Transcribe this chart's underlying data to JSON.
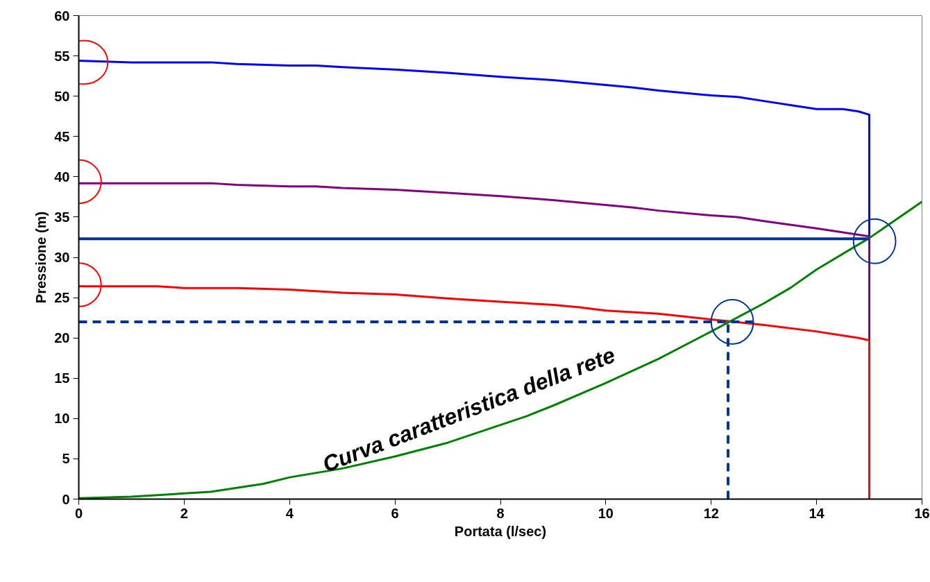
{
  "chart_data": {
    "type": "line",
    "xlabel": "Portata (l/sec)",
    "ylabel": "Pressione (m)",
    "xlim": [
      0,
      16
    ],
    "xticks": [
      0,
      2,
      4,
      6,
      8,
      10,
      12,
      14,
      16
    ],
    "ylim": [
      0,
      60
    ],
    "yticks": [
      0,
      5,
      10,
      15,
      20,
      25,
      30,
      35,
      40,
      45,
      50,
      55,
      60
    ],
    "grid": false,
    "marker": "none",
    "series": [
      {
        "color": "#0000ff",
        "x": [
          0,
          1,
          2.5,
          3,
          4,
          4.5,
          5,
          6,
          7,
          8,
          9,
          10,
          10.5,
          11,
          12,
          12.5,
          13,
          13.5,
          14,
          14.5,
          14.8,
          15,
          15
        ],
        "values": [
          54.4,
          54.2,
          54.2,
          54.0,
          53.8,
          53.8,
          53.6,
          53.3,
          52.9,
          52.4,
          52.0,
          51.4,
          51.1,
          50.7,
          50.1,
          49.9,
          49.4,
          48.9,
          48.4,
          48.4,
          48.1,
          47.7,
          32.4
        ]
      },
      {
        "color": "#800080",
        "x": [
          0,
          1,
          2.5,
          3,
          4,
          4.5,
          5,
          6,
          7,
          8,
          9,
          10,
          10.5,
          11,
          12,
          12.5,
          13,
          14,
          15,
          15
        ],
        "values": [
          39.2,
          39.2,
          39.2,
          39.0,
          38.8,
          38.8,
          38.6,
          38.4,
          38.0,
          37.6,
          37.1,
          36.5,
          36.2,
          35.8,
          35.2,
          35.0,
          34.5,
          33.6,
          32.6,
          19.7
        ]
      },
      {
        "color": "#ff0000",
        "x": [
          0,
          1.5,
          2,
          3,
          4,
          5,
          6,
          7,
          8,
          9,
          9.5,
          10,
          11,
          12,
          13,
          14,
          14.8,
          15,
          15
        ],
        "values": [
          26.4,
          26.4,
          26.2,
          26.2,
          26.0,
          25.6,
          25.4,
          24.9,
          24.5,
          24.1,
          23.8,
          23.4,
          23.0,
          22.3,
          21.6,
          20.8,
          20.0,
          19.7,
          0
        ]
      },
      {
        "color": "#008000",
        "x": [
          0,
          1,
          2,
          2.5,
          3,
          3.5,
          4,
          5,
          6,
          7,
          8,
          8.5,
          9,
          10,
          11,
          12,
          13,
          13.5,
          14,
          15,
          16
        ],
        "values": [
          0.1,
          0.3,
          0.7,
          0.9,
          1.4,
          1.9,
          2.7,
          3.8,
          5.3,
          7.0,
          9.2,
          10.3,
          11.6,
          14.4,
          17.4,
          20.8,
          24.3,
          26.2,
          28.5,
          32.4,
          36.9
        ]
      },
      {
        "color": "#003399",
        "x": [
          0,
          15
        ],
        "values": [
          32.3,
          32.3
        ]
      },
      {
        "color": "#003399",
        "line_style": "dashed",
        "x": [
          0,
          12.8
        ],
        "values": [
          22.0,
          22.0
        ]
      },
      {
        "color": "#003399",
        "line_style": "dashed",
        "x": [
          12.32,
          12.32
        ],
        "values": [
          0,
          22.0
        ]
      }
    ],
    "annotations": [
      "Curva caratteristica della rete"
    ]
  }
}
